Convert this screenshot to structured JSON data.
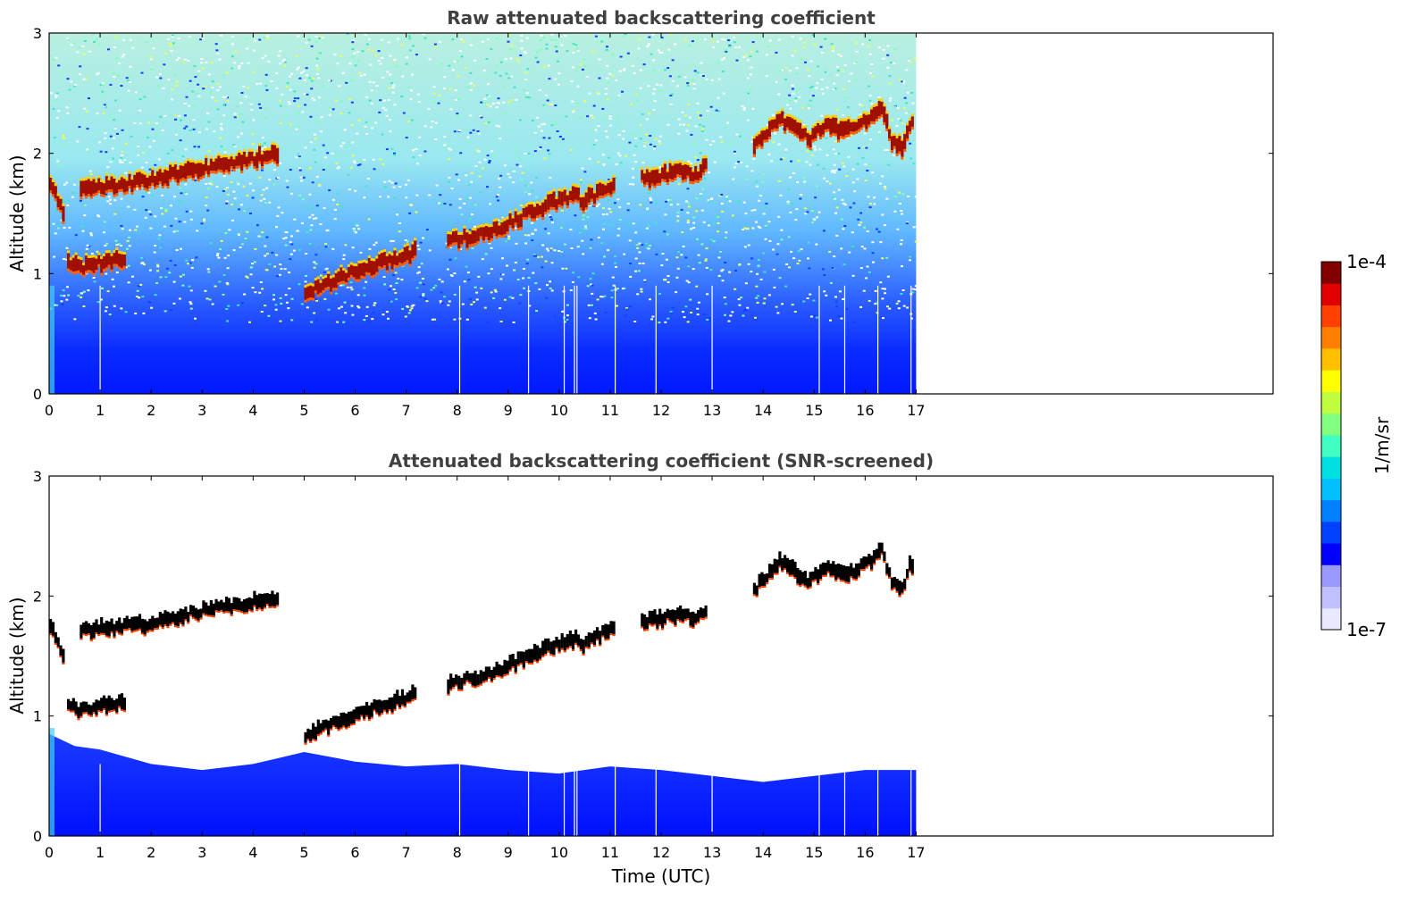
{
  "chart_data": [
    {
      "type": "heatmap",
      "title": "Raw attenuated backscattering coefficient",
      "xlabel": "",
      "ylabel": "Altitude (km)",
      "xlim": [
        0,
        24
      ],
      "ylim": [
        0,
        3
      ],
      "x_ticks": [
        0,
        1,
        2,
        3,
        4,
        5,
        6,
        7,
        8,
        9,
        10,
        11,
        12,
        13,
        14,
        15,
        16,
        17
      ],
      "y_ticks": [
        0,
        1,
        2,
        3
      ],
      "data_extent_time": [
        0,
        17
      ],
      "colorscale": "jet",
      "screened": false,
      "layers": [
        {
          "kind": "cloud",
          "x": [
            0.0,
            0.3
          ],
          "y": [
            1.75,
            1.45
          ]
        },
        {
          "kind": "cloud",
          "x": [
            0.6,
            1.0,
            1.5,
            2.0,
            2.5,
            3.0,
            3.5,
            4.0,
            4.5
          ],
          "y": [
            1.72,
            1.73,
            1.75,
            1.78,
            1.83,
            1.88,
            1.92,
            1.96,
            2.0
          ]
        },
        {
          "kind": "cloud",
          "x": [
            0.35,
            0.6,
            0.9,
            1.2,
            1.5
          ],
          "y": [
            1.08,
            1.05,
            1.08,
            1.12,
            1.1
          ]
        },
        {
          "kind": "cloud",
          "x": [
            5.0,
            5.5,
            6.0,
            6.5,
            7.0,
            7.2
          ],
          "y": [
            0.85,
            0.93,
            1.02,
            1.1,
            1.15,
            1.2
          ]
        },
        {
          "kind": "cloud",
          "x": [
            7.8,
            7.9,
            8.6,
            8.8,
            9.6,
            10.3,
            10.45,
            11.1
          ],
          "y": [
            1.27,
            1.28,
            1.35,
            1.38,
            1.55,
            1.65,
            1.6,
            1.75
          ]
        },
        {
          "kind": "cloud",
          "x": [
            11.6,
            11.9,
            12.3,
            12.7,
            12.9
          ],
          "y": [
            1.8,
            1.8,
            1.85,
            1.82,
            1.93
          ]
        },
        {
          "kind": "cloud",
          "x": [
            13.8,
            14.0,
            14.3,
            14.6,
            14.9,
            15.2,
            15.5,
            15.8,
            16.1,
            16.3,
            16.5,
            16.7,
            16.85,
            16.95
          ],
          "y": [
            2.05,
            2.15,
            2.3,
            2.2,
            2.12,
            2.25,
            2.2,
            2.22,
            2.3,
            2.38,
            2.1,
            2.05,
            2.25,
            2.3
          ]
        }
      ]
    },
    {
      "type": "heatmap",
      "title": "Attenuated backscattering coefficient (SNR-screened)",
      "xlabel": "Time (UTC)",
      "ylabel": "Altitude (km)",
      "xlim": [
        0,
        24
      ],
      "ylim": [
        0,
        3
      ],
      "x_ticks": [
        0,
        1,
        2,
        3,
        4,
        5,
        6,
        7,
        8,
        9,
        10,
        11,
        12,
        13,
        14,
        15,
        16,
        17
      ],
      "y_ticks": [
        0,
        1,
        2,
        3
      ],
      "data_extent_time": [
        0,
        17
      ],
      "colorscale": "jet",
      "screened": true,
      "boundary_layer_top": {
        "x": [
          0,
          0.5,
          1,
          2,
          3,
          4,
          4.5,
          5,
          6,
          7,
          8,
          9,
          10,
          11,
          12,
          13,
          14,
          15,
          16,
          17
        ],
        "y": [
          0.85,
          0.75,
          0.72,
          0.6,
          0.55,
          0.6,
          0.65,
          0.7,
          0.62,
          0.58,
          0.6,
          0.55,
          0.52,
          0.58,
          0.55,
          0.5,
          0.45,
          0.5,
          0.55,
          0.55
        ]
      },
      "layers": [
        {
          "kind": "cloud",
          "x": [
            0.0,
            0.3
          ],
          "y": [
            1.75,
            1.45
          ]
        },
        {
          "kind": "cloud",
          "x": [
            0.6,
            1.0,
            1.5,
            2.0,
            2.5,
            3.0,
            3.5,
            4.0,
            4.5
          ],
          "y": [
            1.72,
            1.73,
            1.75,
            1.78,
            1.83,
            1.88,
            1.92,
            1.96,
            2.0
          ]
        },
        {
          "kind": "cloud",
          "x": [
            0.35,
            0.6,
            0.9,
            1.2,
            1.5
          ],
          "y": [
            1.08,
            1.05,
            1.08,
            1.12,
            1.1
          ]
        },
        {
          "kind": "cloud",
          "x": [
            5.0,
            5.5,
            6.0,
            6.5,
            7.0,
            7.2
          ],
          "y": [
            0.85,
            0.93,
            1.02,
            1.1,
            1.15,
            1.2
          ]
        },
        {
          "kind": "cloud",
          "x": [
            7.8,
            7.9,
            8.6,
            8.8,
            9.6,
            10.3,
            10.45,
            11.1
          ],
          "y": [
            1.27,
            1.28,
            1.35,
            1.38,
            1.55,
            1.65,
            1.6,
            1.75
          ]
        },
        {
          "kind": "cloud",
          "x": [
            11.6,
            11.9,
            12.3,
            12.7,
            12.9
          ],
          "y": [
            1.8,
            1.8,
            1.85,
            1.82,
            1.93
          ]
        },
        {
          "kind": "cloud",
          "x": [
            13.8,
            14.0,
            14.3,
            14.6,
            14.9,
            15.2,
            15.5,
            15.8,
            16.1,
            16.3,
            16.5,
            16.7,
            16.85,
            16.95
          ],
          "y": [
            2.05,
            2.15,
            2.3,
            2.2,
            2.12,
            2.25,
            2.2,
            2.22,
            2.3,
            2.38,
            2.1,
            2.05,
            2.25,
            2.3
          ]
        }
      ]
    }
  ],
  "colorbar": {
    "label": "1/m/sr",
    "min_label": "1e-7",
    "max_label": "1e-4",
    "colors": [
      "#e8e8ff",
      "#c0c0ff",
      "#9999ff",
      "#0000ff",
      "#0040ff",
      "#0080ff",
      "#00c0ff",
      "#00e0e0",
      "#40ffc0",
      "#80ff80",
      "#c0ff40",
      "#ffff00",
      "#ffc000",
      "#ff8000",
      "#ff4000",
      "#e00000",
      "#800000"
    ]
  }
}
